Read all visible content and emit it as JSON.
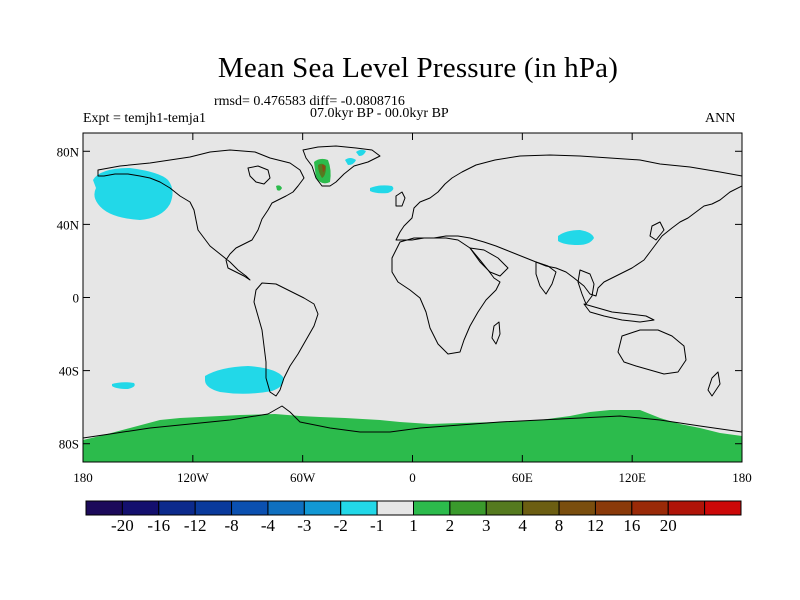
{
  "title": "Mean Sea Level Pressure (in hPa)",
  "stats": "rmsd= 0.476583 diff= -0.0808716",
  "period": "07.0kyr BP - 00.0kyr BP",
  "experiment": "Expt = temjh1-temja1",
  "season": "ANN",
  "colors": {
    "ocean_bg": "#e6e6e6",
    "coast": "#000000",
    "anomaly_cyan": "#22d8e8",
    "anomaly_green": "#2cbb4c",
    "anomaly_olive": "#557a1f",
    "anomaly_brown": "#8a4a16"
  },
  "chart_data": {
    "type": "map",
    "projection": "cylindrical-equidistant",
    "lon_range": [
      -180,
      180
    ],
    "lat_range": [
      -90,
      90
    ],
    "x_ticks": [
      {
        "lon": -180,
        "label": "180"
      },
      {
        "lon": -120,
        "label": "120W"
      },
      {
        "lon": -60,
        "label": "60W"
      },
      {
        "lon": 0,
        "label": "0"
      },
      {
        "lon": 60,
        "label": "60E"
      },
      {
        "lon": 120,
        "label": "120E"
      },
      {
        "lon": 180,
        "label": "180"
      }
    ],
    "y_ticks": [
      {
        "lat": 80,
        "label": "80N"
      },
      {
        "lat": 40,
        "label": "40N"
      },
      {
        "lat": 0,
        "label": "0"
      },
      {
        "lat": -40,
        "label": "40S"
      },
      {
        "lat": -80,
        "label": "80S"
      }
    ],
    "colorbar": {
      "colors": [
        "#1c0a5a",
        "#14106e",
        "#0c2a8c",
        "#0a3a9c",
        "#0b50b0",
        "#1070c0",
        "#1298d4",
        "#22d8e8",
        "#e6e6e6",
        "#2cbb4c",
        "#3a9a2c",
        "#557a1f",
        "#6c5e12",
        "#7a4e0e",
        "#8a3a0a",
        "#9a2a08",
        "#b01408",
        "#cc0808"
      ],
      "labels": [
        "-20",
        "-16",
        "-12",
        "-8",
        "-4",
        "-3",
        "-2",
        "-1",
        "1",
        "2",
        "3",
        "4",
        "8",
        "12",
        "16",
        "20"
      ]
    },
    "anomaly_regions": [
      {
        "name": "north-pacific-low",
        "level": "-1 to -2",
        "color_key": "anomaly_cyan"
      },
      {
        "name": "south-pacific-low",
        "level": "-1 to -2",
        "color_key": "anomaly_cyan"
      },
      {
        "name": "tibet-low",
        "level": "-1 to -2",
        "color_key": "anomaly_cyan"
      },
      {
        "name": "iceland-low",
        "level": "-1 to -2",
        "color_key": "anomaly_cyan"
      },
      {
        "name": "antarctica-high",
        "level": "1 to 2",
        "color_key": "anomaly_green"
      },
      {
        "name": "greenland-high",
        "level": "2 to 8",
        "color_key": "anomaly_olive"
      }
    ]
  }
}
